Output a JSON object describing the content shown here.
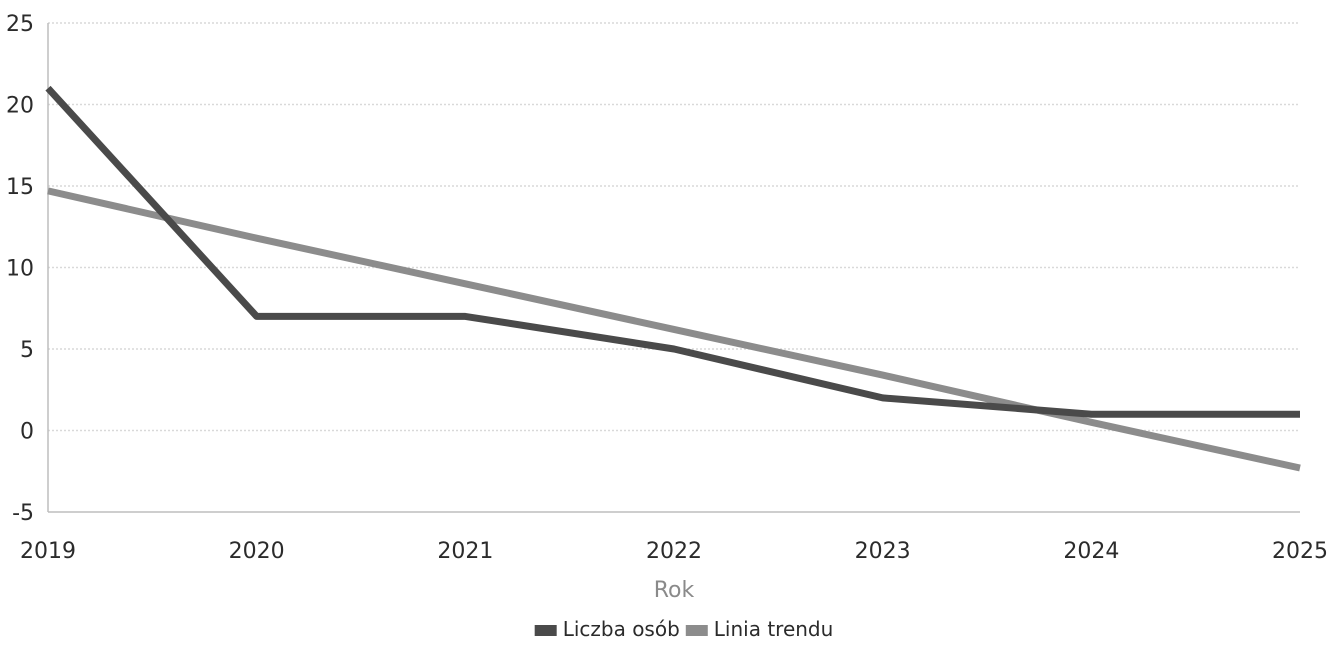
{
  "chart_data": {
    "type": "line",
    "title": "",
    "xlabel": "Rok",
    "ylabel": "",
    "x": [
      "2019",
      "2020",
      "2021",
      "2022",
      "2023",
      "2024",
      "2025"
    ],
    "ylim": [
      -5,
      25
    ],
    "yticks": [
      "25",
      "20",
      "15",
      "10",
      "5",
      "0",
      "-5"
    ],
    "grid": true,
    "legend_position": "bottom-center",
    "series": [
      {
        "name": "Liczba osób",
        "color": "#4a4a4a",
        "values": [
          21,
          7,
          7,
          5,
          2,
          1,
          1
        ]
      },
      {
        "name": "Linia trendu",
        "color": "#8c8c8c",
        "values": [
          14.7,
          11.8,
          9,
          6.2,
          3.4,
          0.5,
          -2.3
        ]
      }
    ]
  }
}
